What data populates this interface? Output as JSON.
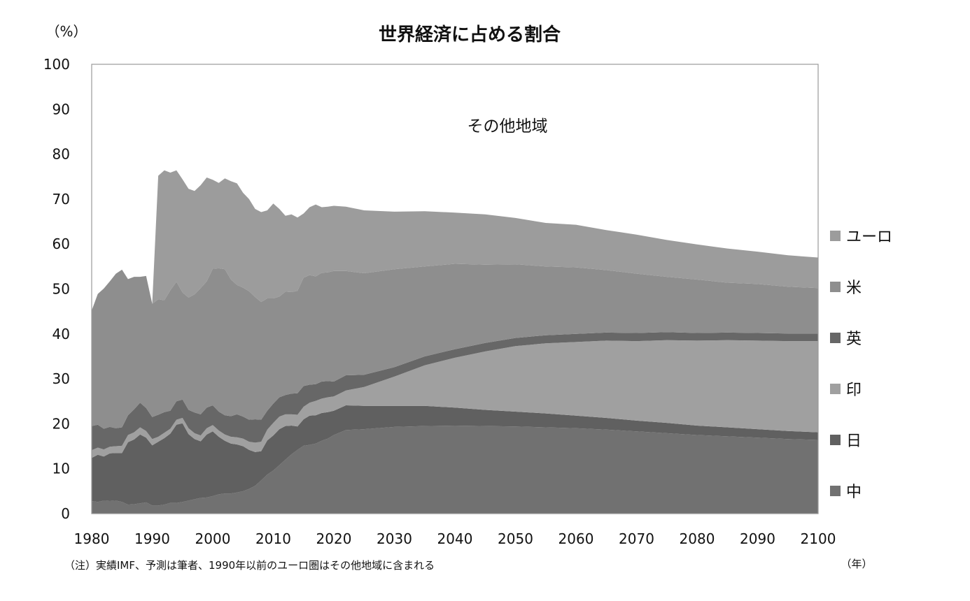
{
  "chart_data": {
    "type": "area",
    "stacked": true,
    "title": "世界経済に占める割合",
    "y_unit_label": "（%）",
    "x_unit_label": "（年）",
    "note": "（注）実績IMF、予測は筆者、1990年以前のユーロ圏はその他地域に含まれる",
    "inside_label": "その他地域",
    "xlim": [
      1980,
      2100
    ],
    "ylim": [
      0,
      100
    ],
    "x_ticks": [
      "1980",
      "1990",
      "2000",
      "2010",
      "2020",
      "2030",
      "2040",
      "2050",
      "2060",
      "2070",
      "2080",
      "2090",
      "2100"
    ],
    "y_ticks": [
      "0",
      "10",
      "20",
      "30",
      "40",
      "50",
      "60",
      "70",
      "80",
      "90",
      "100"
    ],
    "grid": false,
    "legend_position": "right",
    "legend": [
      "ユーロ",
      "米",
      "英",
      "印",
      "日",
      "中"
    ],
    "series_colors": {
      "中": "#717171",
      "日": "#606060",
      "印": "#a0a0a0",
      "英": "#676767",
      "米": "#8e8e8e",
      "ユーロ": "#9c9c9c",
      "その他地域": "#ffffff"
    },
    "x": [
      1980,
      1981,
      1982,
      1983,
      1984,
      1985,
      1986,
      1987,
      1988,
      1989,
      1990,
      1991,
      1992,
      1993,
      1994,
      1995,
      1996,
      1997,
      1998,
      1999,
      2000,
      2001,
      2002,
      2003,
      2004,
      2005,
      2006,
      2007,
      2008,
      2009,
      2010,
      2011,
      2012,
      2013,
      2014,
      2015,
      2016,
      2017,
      2018,
      2019,
      2020,
      2022,
      2025,
      2030,
      2035,
      2040,
      2045,
      2050,
      2055,
      2060,
      2065,
      2070,
      2075,
      2080,
      2085,
      2090,
      2095,
      2100
    ],
    "series": [
      {
        "name": "中",
        "values": [
          2.8,
          2.6,
          2.9,
          2.8,
          2.9,
          2.6,
          2.0,
          2.1,
          2.3,
          2.5,
          1.8,
          1.8,
          2.0,
          2.4,
          2.4,
          2.6,
          2.9,
          3.2,
          3.5,
          3.6,
          3.9,
          4.3,
          4.5,
          4.5,
          4.7,
          5.0,
          5.5,
          6.2,
          7.4,
          8.7,
          9.6,
          10.8,
          12.0,
          13.2,
          14.2,
          15.1,
          15.3,
          15.6,
          16.2,
          16.7,
          17.5,
          18.6,
          18.8,
          19.3,
          19.5,
          19.6,
          19.5,
          19.4,
          19.2,
          19.0,
          18.7,
          18.3,
          17.9,
          17.5,
          17.2,
          16.9,
          16.6,
          16.4
        ]
      },
      {
        "name": "日",
        "values": [
          9.6,
          10.5,
          9.8,
          10.6,
          10.6,
          10.9,
          13.9,
          14.4,
          15.3,
          14.4,
          13.4,
          14.2,
          14.8,
          15.4,
          17.4,
          17.5,
          14.8,
          13.4,
          12.6,
          14.0,
          14.4,
          12.8,
          11.7,
          11.1,
          10.7,
          10.0,
          8.7,
          7.5,
          6.5,
          7.6,
          7.8,
          8.0,
          7.5,
          6.4,
          5.2,
          5.9,
          6.5,
          6.3,
          6.2,
          5.9,
          5.4,
          5.5,
          5.2,
          4.7,
          4.5,
          4.0,
          3.6,
          3.3,
          3.1,
          2.8,
          2.6,
          2.4,
          2.3,
          2.1,
          2.0,
          1.9,
          1.8,
          1.7
        ]
      },
      {
        "name": "印",
        "values": [
          1.7,
          1.6,
          1.6,
          1.5,
          1.5,
          1.6,
          1.6,
          1.6,
          1.6,
          1.5,
          1.4,
          1.1,
          1.2,
          1.1,
          1.1,
          1.2,
          1.3,
          1.3,
          1.3,
          1.4,
          1.4,
          1.4,
          1.4,
          1.5,
          1.6,
          1.7,
          1.8,
          2.1,
          2.1,
          2.4,
          2.8,
          2.8,
          2.6,
          2.5,
          2.6,
          2.8,
          2.9,
          3.2,
          3.2,
          3.3,
          3.2,
          3.3,
          4.2,
          6.5,
          9.0,
          11.1,
          13.0,
          14.6,
          15.6,
          16.4,
          17.2,
          17.7,
          18.4,
          18.9,
          19.4,
          19.7,
          20.0,
          20.3
        ]
      },
      {
        "name": "英",
        "values": [
          5.4,
          5.1,
          4.6,
          4.4,
          4.0,
          4.1,
          4.4,
          5.1,
          5.5,
          5.1,
          4.9,
          4.9,
          4.6,
          4.0,
          4.1,
          4.1,
          4.1,
          4.6,
          4.7,
          4.6,
          4.4,
          4.2,
          4.3,
          4.6,
          5.1,
          4.9,
          4.9,
          5.2,
          4.9,
          4.2,
          4.3,
          4.3,
          4.3,
          4.6,
          4.8,
          4.6,
          4.0,
          3.7,
          3.8,
          3.6,
          3.3,
          3.4,
          2.7,
          2.1,
          2.0,
          1.9,
          1.9,
          1.8,
          1.8,
          1.8,
          1.8,
          1.8,
          1.8,
          1.7,
          1.7,
          1.7,
          1.7,
          1.7
        ]
      },
      {
        "name": "米",
        "values": [
          25.7,
          29.1,
          31.2,
          32.4,
          34.4,
          35.1,
          30.3,
          29.5,
          28.0,
          29.4,
          25.2,
          25.7,
          24.9,
          26.8,
          26.6,
          23.8,
          25.0,
          26.3,
          28.1,
          28.1,
          30.4,
          31.9,
          32.5,
          30.4,
          28.8,
          28.7,
          28.6,
          27.2,
          26.2,
          25.0,
          23.4,
          22.4,
          23.0,
          22.6,
          22.8,
          24.1,
          24.4,
          24.0,
          24.2,
          24.2,
          24.6,
          23.2,
          22.6,
          21.8,
          20.0,
          19.0,
          17.4,
          16.4,
          15.3,
          14.8,
          13.9,
          13.2,
          12.3,
          11.9,
          11.1,
          10.9,
          10.4,
          10.1
        ]
      },
      {
        "name": "ユーロ",
        "values": [
          0,
          0,
          0,
          0,
          0,
          0,
          0,
          0,
          0,
          0,
          0,
          27.5,
          28.9,
          26.2,
          24.8,
          25.2,
          24.2,
          23.0,
          22.9,
          23.1,
          19.8,
          19.0,
          20.2,
          21.9,
          22.6,
          21.1,
          20.5,
          19.6,
          20.0,
          19.6,
          21.1,
          19.5,
          16.9,
          17.3,
          16.3,
          14.3,
          15.1,
          16.0,
          14.6,
          14.6,
          14.5,
          14.3,
          14.0,
          12.8,
          12.3,
          11.4,
          11.2,
          10.3,
          9.7,
          9.5,
          8.9,
          8.7,
          8.2,
          7.8,
          7.6,
          7.2,
          7.0,
          6.8
        ]
      }
    ]
  }
}
